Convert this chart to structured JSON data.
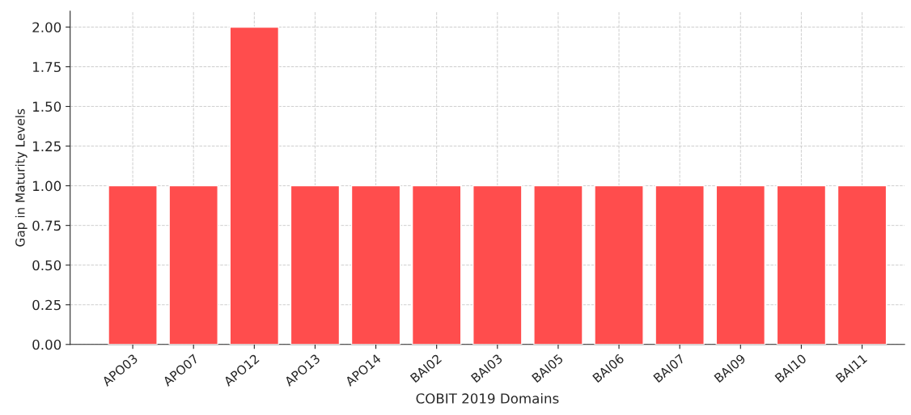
{
  "chart_data": {
    "type": "bar",
    "xlabel": "COBIT 2019 Domains",
    "ylabel": "Gap in Maturity Levels",
    "categories": [
      "APO03",
      "APO07",
      "APO12",
      "APO13",
      "APO14",
      "BAI02",
      "BAI03",
      "BAI05",
      "BAI06",
      "BAI07",
      "BAI09",
      "BAI10",
      "BAI11"
    ],
    "values": [
      1,
      1,
      2,
      1,
      1,
      1,
      1,
      1,
      1,
      1,
      1,
      1,
      1
    ],
    "color": "#ff4d4d",
    "ylim": [
      0,
      2.1
    ],
    "yticks": [
      {
        "value": 0,
        "label": "0.00"
      },
      {
        "value": 0.25,
        "label": "0.25"
      },
      {
        "value": 0.5,
        "label": "0.50"
      },
      {
        "value": 0.75,
        "label": "0.75"
      },
      {
        "value": 1,
        "label": "1.00"
      },
      {
        "value": 1.25,
        "label": "1.25"
      },
      {
        "value": 1.5,
        "label": "1.50"
      },
      {
        "value": 1.75,
        "label": "1.75"
      },
      {
        "value": 2,
        "label": "2.00"
      }
    ],
    "grid": true,
    "line_style": "dashed"
  }
}
